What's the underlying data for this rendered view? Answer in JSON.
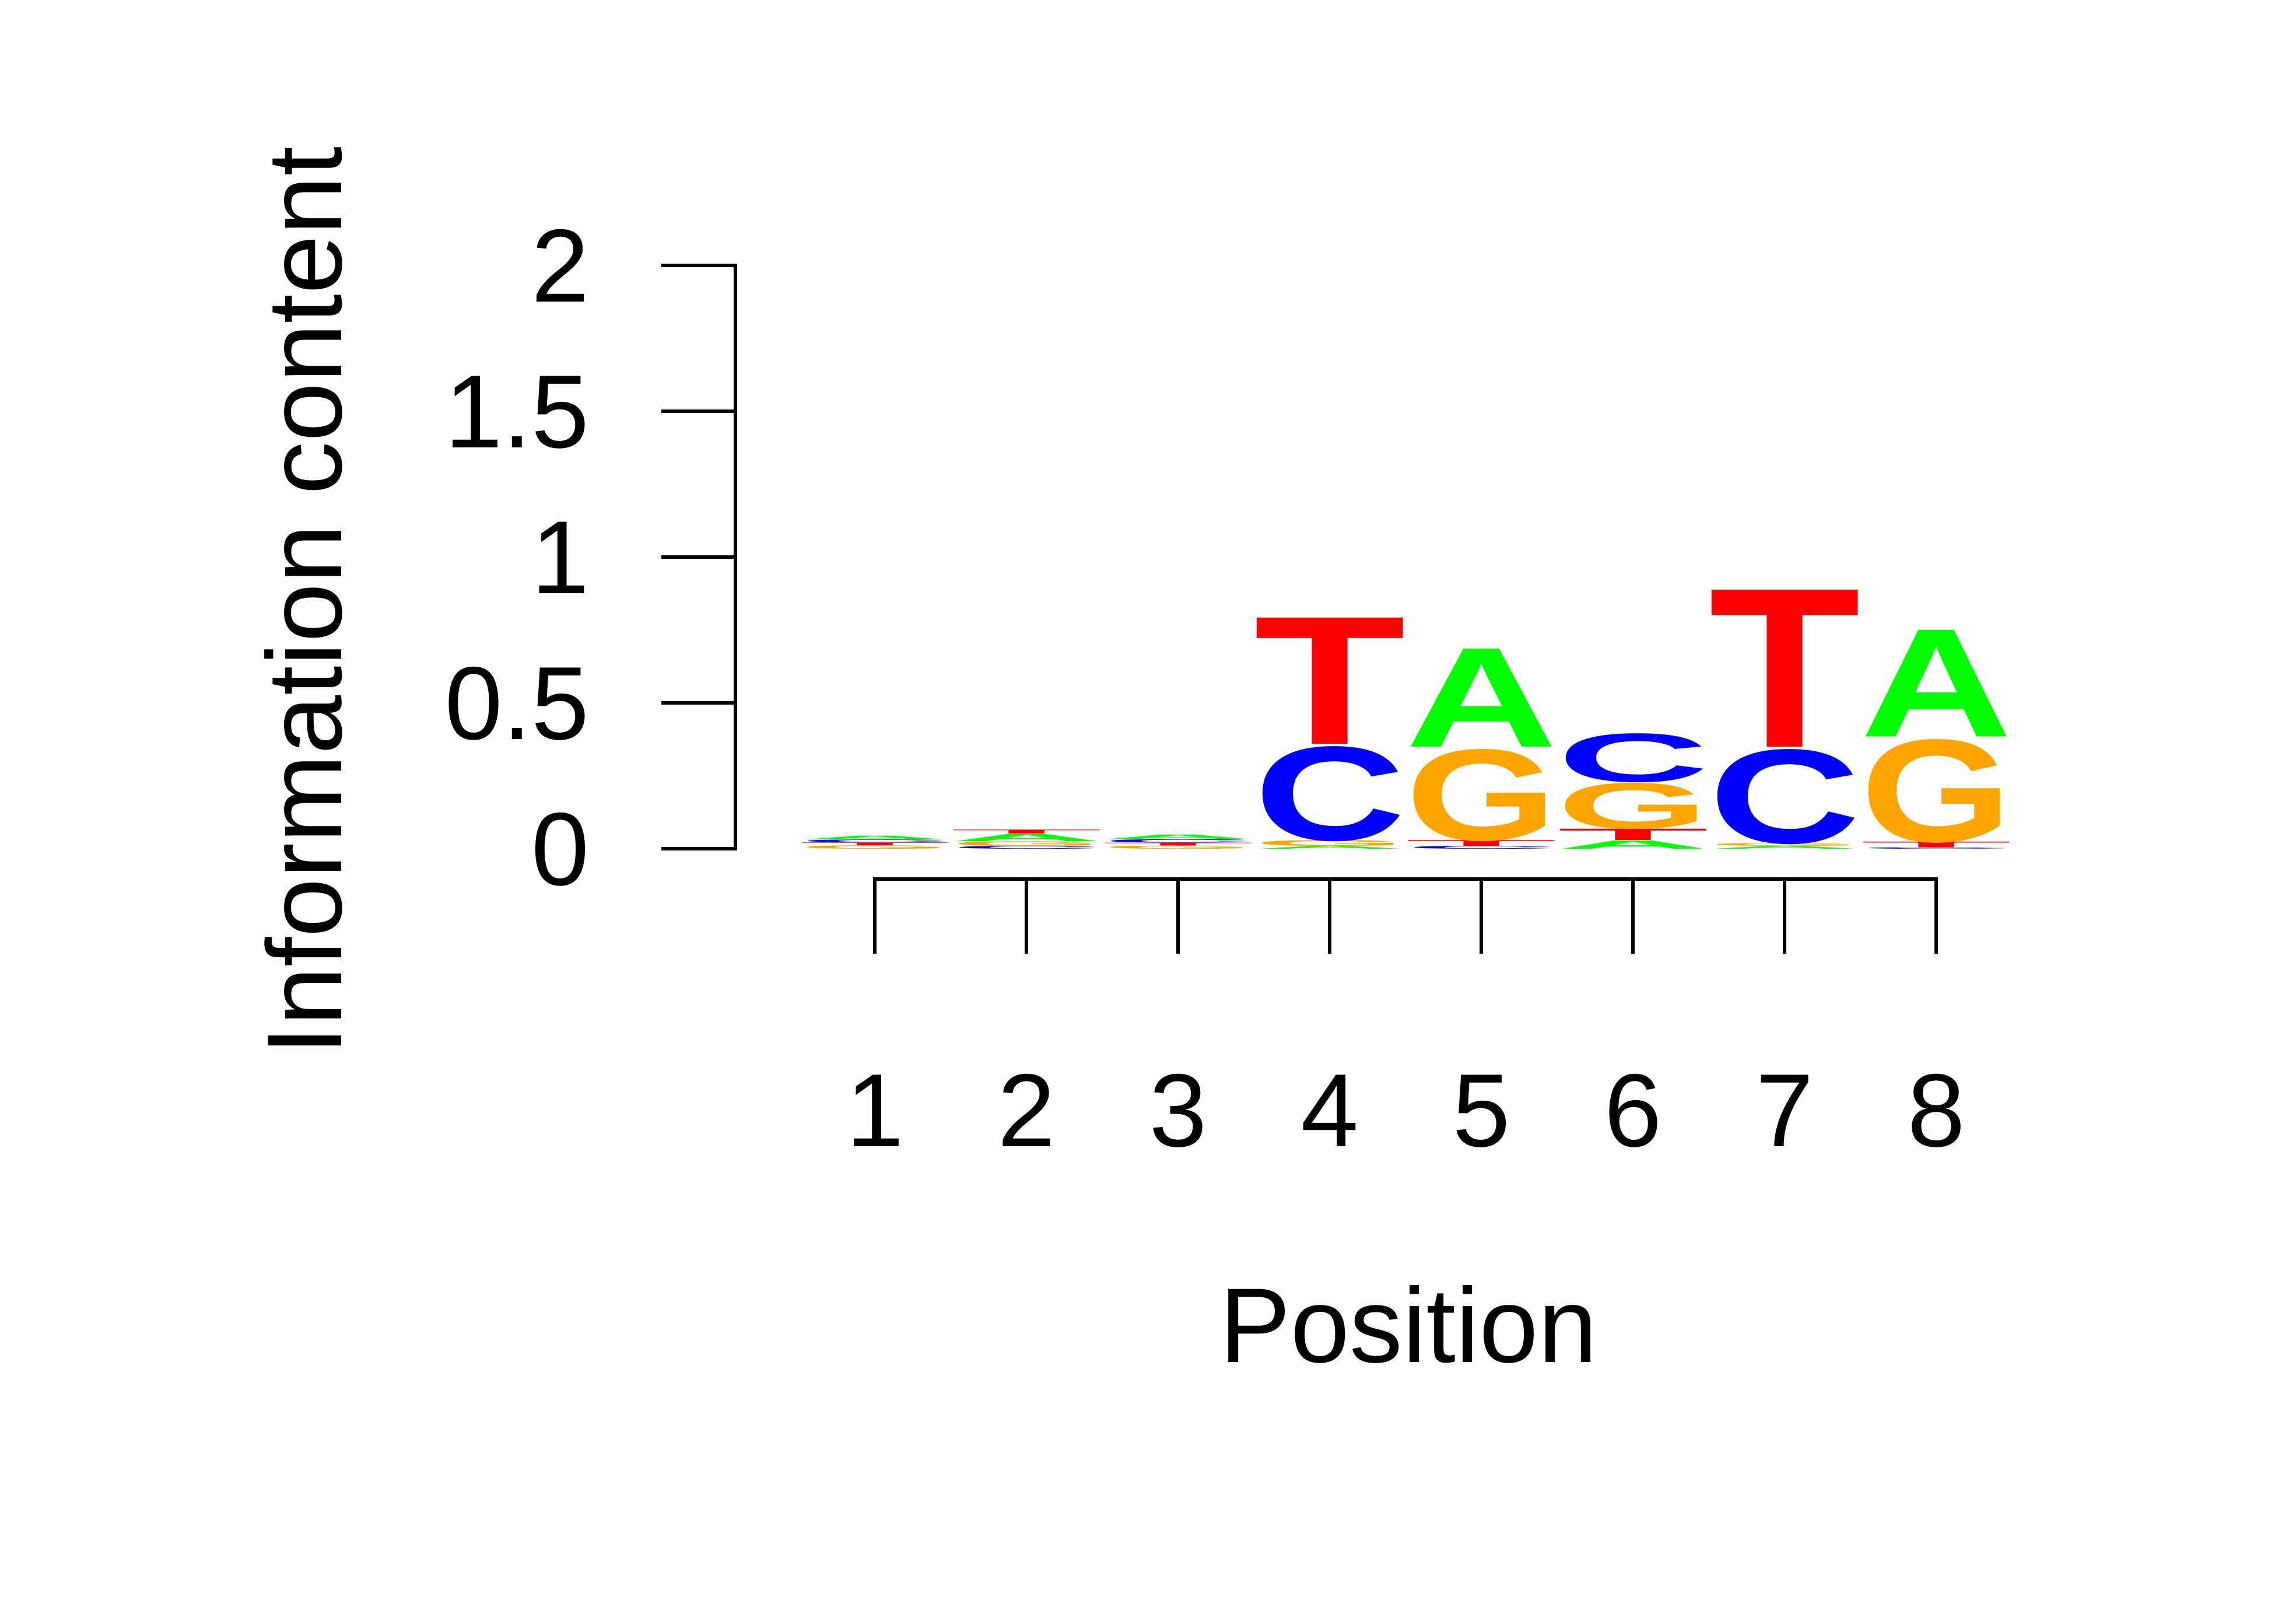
{
  "chart_data": {
    "type": "sequence-logo",
    "title": "",
    "xlabel": "Position",
    "ylabel": "Information content",
    "ylim": [
      0,
      2
    ],
    "yticks": [
      0,
      0.5,
      1,
      1.5,
      2
    ],
    "ytick_labels": [
      "0",
      "0.5",
      "1",
      "1.5",
      "2"
    ],
    "positions": [
      1,
      2,
      3,
      4,
      5,
      6,
      7,
      8
    ],
    "xtick_labels": [
      "1",
      "2",
      "3",
      "4",
      "5",
      "6",
      "7",
      "8"
    ],
    "colors": {
      "A": "#00ff00",
      "C": "#0000ff",
      "G": "#ffa500",
      "T": "#ff0000"
    },
    "stacks": [
      {
        "position": 1,
        "letters": [
          {
            "base": "G",
            "height": 0.012
          },
          {
            "base": "T",
            "height": 0.01
          },
          {
            "base": "C",
            "height": 0.01
          },
          {
            "base": "A",
            "height": 0.013
          }
        ]
      },
      {
        "position": 2,
        "letters": [
          {
            "base": "C",
            "height": 0.01
          },
          {
            "base": "G",
            "height": 0.016
          },
          {
            "base": "A",
            "height": 0.026
          },
          {
            "base": "T",
            "height": 0.014
          }
        ]
      },
      {
        "position": 3,
        "letters": [
          {
            "base": "G",
            "height": 0.011
          },
          {
            "base": "T",
            "height": 0.01
          },
          {
            "base": "C",
            "height": 0.012
          },
          {
            "base": "A",
            "height": 0.016
          }
        ]
      },
      {
        "position": 4,
        "letters": [
          {
            "base": "A",
            "height": 0.01
          },
          {
            "base": "G",
            "height": 0.02
          },
          {
            "base": "C",
            "height": 0.33
          },
          {
            "base": "T",
            "height": 0.45
          }
        ]
      },
      {
        "position": 5,
        "letters": [
          {
            "base": "C",
            "height": 0.01
          },
          {
            "base": "T",
            "height": 0.02
          },
          {
            "base": "G",
            "height": 0.32
          },
          {
            "base": "A",
            "height": 0.35
          }
        ]
      },
      {
        "position": 6,
        "letters": [
          {
            "base": "A",
            "height": 0.03
          },
          {
            "base": "T",
            "height": 0.04
          },
          {
            "base": "G",
            "height": 0.16
          },
          {
            "base": "C",
            "height": 0.17
          }
        ]
      },
      {
        "position": 7,
        "letters": [
          {
            "base": "A",
            "height": 0.01
          },
          {
            "base": "G",
            "height": 0.01
          },
          {
            "base": "C",
            "height": 0.33
          },
          {
            "base": "T",
            "height": 0.56
          }
        ]
      },
      {
        "position": 8,
        "letters": [
          {
            "base": "C",
            "height": 0.005
          },
          {
            "base": "T",
            "height": 0.02
          },
          {
            "base": "G",
            "height": 0.36
          },
          {
            "base": "A",
            "height": 0.38
          }
        ]
      }
    ]
  }
}
